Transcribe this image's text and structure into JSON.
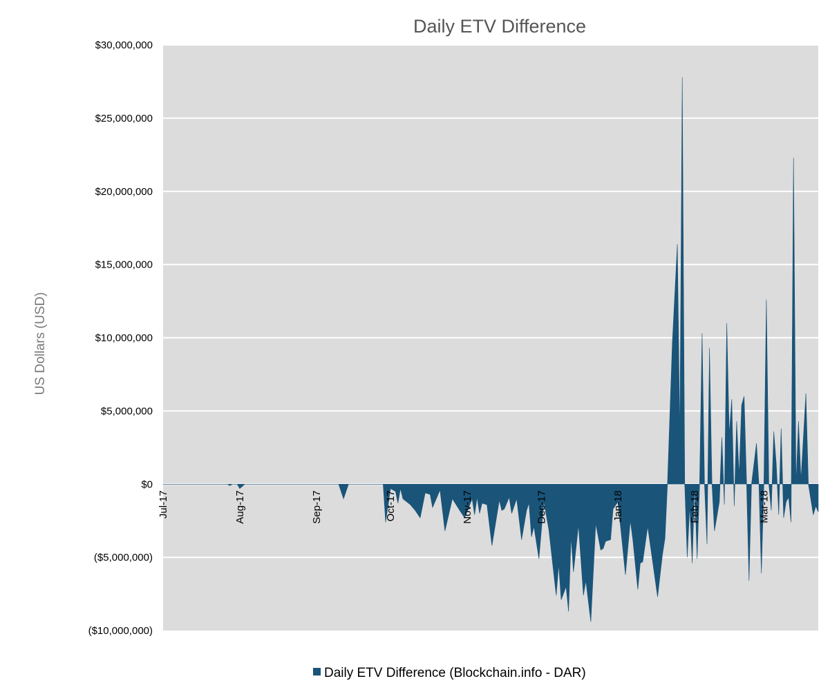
{
  "chart_data": {
    "type": "area",
    "title": "Daily ETV Difference",
    "xlabel": "",
    "ylabel": "US Dollars (USD)",
    "xlim": [
      "2017-07-01",
      "2018-03-23"
    ],
    "ylim": [
      -10000000,
      30000000
    ],
    "yticks": [
      30000000,
      25000000,
      20000000,
      15000000,
      10000000,
      5000000,
      0,
      -5000000,
      -10000000
    ],
    "ytick_labels": [
      "$30,000,000",
      "$25,000,000",
      "$20,000,000",
      "$15,000,000",
      "$10,000,000",
      "$5,000,000",
      "$0",
      "($5,000,000)",
      "($10,000,000)"
    ],
    "xticks": [
      "2017-07-01",
      "2017-08-01",
      "2017-09-01",
      "2017-10-01",
      "2017-11-01",
      "2017-12-01",
      "2018-01-01",
      "2018-02-01",
      "2018-03-01"
    ],
    "xtick_labels": [
      "Jul-17",
      "Aug-17",
      "Sep-17",
      "Oct-17",
      "Nov-17",
      "Dec-17",
      "Jan-18",
      "Feb-18",
      "Mar-18"
    ],
    "grid": true,
    "legend_position": "bottom",
    "colors": {
      "series": "#1a5479",
      "plot_background": "#dcdcdc",
      "grid": "#ffffff"
    },
    "series": [
      {
        "name": "Daily ETV Difference (Blockchain.info - DAR)",
        "x": [
          "2017-07-01",
          "2017-07-27",
          "2017-07-28",
          "2017-07-29",
          "2017-07-31",
          "2017-08-01",
          "2017-08-03",
          "2017-09-10",
          "2017-09-12",
          "2017-09-14",
          "2017-09-28",
          "2017-09-29",
          "2017-10-01",
          "2017-10-03",
          "2017-10-04",
          "2017-10-05",
          "2017-10-06",
          "2017-10-09",
          "2017-10-11",
          "2017-10-13",
          "2017-10-15",
          "2017-10-17",
          "2017-10-18",
          "2017-10-21",
          "2017-10-23",
          "2017-10-26",
          "2017-10-29",
          "2017-10-31",
          "2017-11-03",
          "2017-11-04",
          "2017-11-05",
          "2017-11-06",
          "2017-11-07",
          "2017-11-09",
          "2017-11-11",
          "2017-11-14",
          "2017-11-15",
          "2017-11-16",
          "2017-11-18",
          "2017-11-19",
          "2017-11-21",
          "2017-11-23",
          "2017-11-25",
          "2017-11-26",
          "2017-11-27",
          "2017-11-28",
          "2017-11-30",
          "2017-12-02",
          "2017-12-04",
          "2017-12-07",
          "2017-12-08",
          "2017-12-09",
          "2017-12-11",
          "2017-12-12",
          "2017-12-13",
          "2017-12-14",
          "2017-12-16",
          "2017-12-18",
          "2017-12-19",
          "2017-12-21",
          "2017-12-23",
          "2017-12-25",
          "2017-12-26",
          "2017-12-27",
          "2017-12-29",
          "2017-12-30",
          "2018-01-01",
          "2018-01-04",
          "2018-01-06",
          "2018-01-07",
          "2018-01-09",
          "2018-01-10",
          "2018-01-11",
          "2018-01-13",
          "2018-01-17",
          "2018-01-19",
          "2018-01-20",
          "2018-01-21",
          "2018-01-23",
          "2018-01-25",
          "2018-01-26",
          "2018-01-27",
          "2018-01-28",
          "2018-01-29",
          "2018-01-30",
          "2018-01-31",
          "2018-02-01",
          "2018-02-02",
          "2018-02-03",
          "2018-02-04",
          "2018-02-05",
          "2018-02-06",
          "2018-02-07",
          "2018-02-08",
          "2018-02-09",
          "2018-02-11",
          "2018-02-12",
          "2018-02-13",
          "2018-02-14",
          "2018-02-15",
          "2018-02-16",
          "2018-02-17",
          "2018-02-18",
          "2018-02-19",
          "2018-02-20",
          "2018-02-21",
          "2018-02-22",
          "2018-02-23",
          "2018-02-24",
          "2018-02-26",
          "2018-02-27",
          "2018-02-28",
          "2018-03-01",
          "2018-03-02",
          "2018-03-03",
          "2018-03-04",
          "2018-03-05",
          "2018-03-06",
          "2018-03-07",
          "2018-03-08",
          "2018-03-09",
          "2018-03-10",
          "2018-03-11",
          "2018-03-12",
          "2018-03-13",
          "2018-03-14",
          "2018-03-15",
          "2018-03-16",
          "2018-03-18",
          "2018-03-19",
          "2018-03-21",
          "2018-03-22",
          "2018-03-23"
        ],
        "values": [
          0,
          0,
          -100000,
          0,
          0,
          -300000,
          0,
          0,
          -1000000,
          0,
          0,
          -2600000,
          -300000,
          -500000,
          -1300000,
          -300000,
          -1000000,
          -1400000,
          -1800000,
          -2300000,
          -600000,
          -700000,
          -1600000,
          -400000,
          -3200000,
          -1000000,
          -1800000,
          -2300000,
          -1000000,
          -2100000,
          -900000,
          -2000000,
          -1300000,
          -1400000,
          -4200000,
          -1100000,
          -1800000,
          -1700000,
          -900000,
          -2000000,
          -1000000,
          -3800000,
          -1800000,
          -1300000,
          -3600000,
          -2900000,
          -5100000,
          -1200000,
          -3100000,
          -7600000,
          -5500000,
          -7900000,
          -7000000,
          -8700000,
          -3600000,
          -6000000,
          -2800000,
          -7600000,
          -6600000,
          -9400000,
          -2700000,
          -4500000,
          -4400000,
          -3900000,
          -3800000,
          -1700000,
          -1200000,
          -6200000,
          -2500000,
          -3800000,
          -7200000,
          -5400000,
          -5300000,
          -2900000,
          -7700000,
          -4800000,
          -3700000,
          0,
          9700000,
          16400000,
          3200000,
          27800000,
          0,
          -5000000,
          -1500000,
          -5400000,
          0,
          -5100000,
          0,
          10300000,
          0,
          -4100000,
          9300000,
          0,
          -3200000,
          -1200000,
          3200000,
          -1400000,
          11000000,
          3400000,
          5800000,
          -1500000,
          4300000,
          600000,
          5400000,
          6000000,
          0,
          -6600000,
          0,
          2800000,
          0,
          -6100000,
          0,
          12600000,
          0,
          -1800000,
          3600000,
          1400000,
          -2100000,
          3800000,
          -2300000,
          -1200000,
          -900000,
          -2600000,
          22300000,
          0,
          4300000,
          300000,
          6200000,
          0,
          -2100000,
          -1500000,
          -1900000
        ]
      }
    ]
  }
}
